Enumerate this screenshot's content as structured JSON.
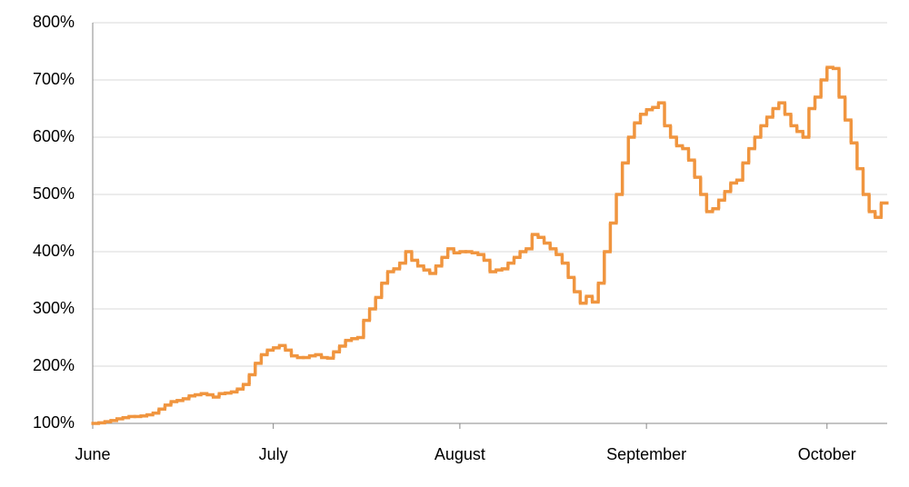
{
  "chart_data": {
    "type": "step",
    "categories": [
      "June",
      null,
      null,
      null,
      null,
      null,
      null,
      null,
      null,
      null,
      null,
      null,
      null,
      null,
      null,
      null,
      null,
      null,
      null,
      null,
      null,
      null,
      null,
      null,
      null,
      null,
      null,
      null,
      null,
      null,
      "July",
      null,
      null,
      null,
      null,
      null,
      null,
      null,
      null,
      null,
      null,
      null,
      null,
      null,
      null,
      null,
      null,
      null,
      null,
      null,
      null,
      null,
      null,
      null,
      null,
      null,
      null,
      null,
      null,
      null,
      null,
      "August",
      null,
      null,
      null,
      null,
      null,
      null,
      null,
      null,
      null,
      null,
      null,
      null,
      null,
      null,
      null,
      null,
      null,
      null,
      null,
      null,
      null,
      null,
      null,
      null,
      null,
      null,
      null,
      null,
      null,
      null,
      "September",
      null,
      null,
      null,
      null,
      null,
      null,
      null,
      null,
      null,
      null,
      null,
      null,
      null,
      null,
      null,
      null,
      null,
      null,
      null,
      null,
      null,
      null,
      null,
      null,
      null,
      null,
      null,
      null,
      null,
      "October",
      null,
      null,
      null,
      null,
      null,
      null,
      null,
      null,
      null
    ],
    "values": [
      100,
      101,
      103,
      105,
      108,
      110,
      112,
      112,
      113,
      115,
      118,
      125,
      132,
      138,
      140,
      143,
      148,
      150,
      152,
      150,
      146,
      152,
      153,
      155,
      160,
      168,
      185,
      205,
      220,
      228,
      232,
      236,
      228,
      218,
      215,
      215,
      218,
      220,
      215,
      214,
      225,
      235,
      245,
      248,
      250,
      280,
      300,
      320,
      345,
      365,
      370,
      380,
      400,
      385,
      375,
      368,
      362,
      375,
      390,
      405,
      398,
      400,
      400,
      398,
      395,
      385,
      365,
      368,
      370,
      380,
      390,
      400,
      405,
      430,
      425,
      415,
      405,
      395,
      380,
      355,
      330,
      310,
      322,
      312,
      345,
      400,
      450,
      500,
      555,
      600,
      625,
      640,
      648,
      652,
      660,
      620,
      600,
      585,
      580,
      560,
      530,
      500,
      470,
      475,
      490,
      505,
      520,
      525,
      555,
      580,
      600,
      620,
      635,
      650,
      660,
      640,
      620,
      610,
      600,
      650,
      670,
      700,
      722,
      720,
      670,
      630,
      590,
      545,
      500,
      470,
      460,
      485
    ],
    "color": "#f0953f",
    "ylim": [
      100,
      800
    ],
    "yticks": [
      {
        "value": 100,
        "label": "100%"
      },
      {
        "value": 200,
        "label": "200%"
      },
      {
        "value": 300,
        "label": "300%"
      },
      {
        "value": 400,
        "label": "400%"
      },
      {
        "value": 500,
        "label": "500%"
      },
      {
        "value": 600,
        "label": "600%"
      },
      {
        "value": 700,
        "label": "700%"
      },
      {
        "value": 800,
        "label": "800%"
      }
    ],
    "grid": true
  }
}
